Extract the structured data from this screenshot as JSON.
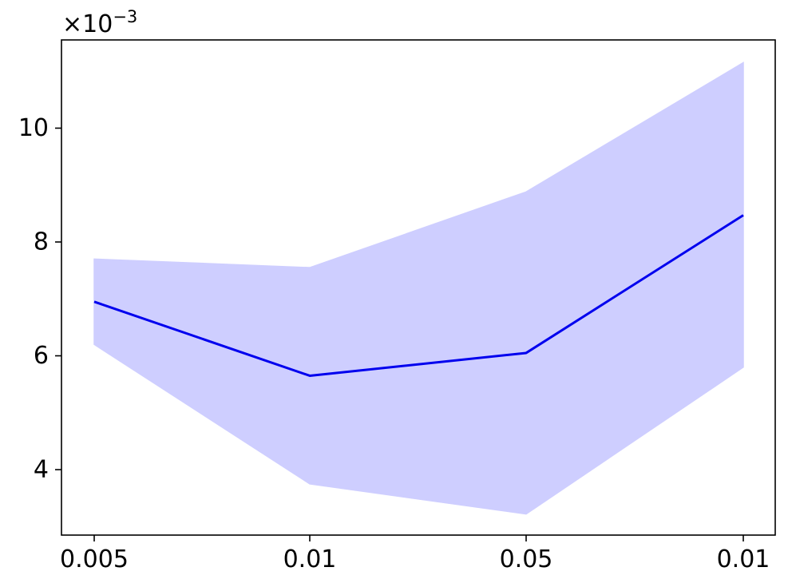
{
  "chart_data": {
    "type": "line",
    "title": "",
    "xlabel": "",
    "ylabel": "",
    "categories": [
      "0.005",
      "0.01",
      "0.05",
      "0.01"
    ],
    "y_scale_factor": "×10",
    "y_scale_exponent": "−3",
    "y_multiplier": 0.001,
    "yticks": [
      4,
      6,
      8,
      10
    ],
    "ylim": [
      2.85,
      11.55
    ],
    "series": [
      {
        "values": [
          6.95,
          5.65,
          6.05,
          8.47
        ],
        "lower": [
          6.2,
          3.75,
          3.22,
          5.8
        ],
        "upper": [
          7.7,
          7.55,
          8.88,
          11.15
        ],
        "line_color": "#0000ee",
        "band_color": "#ceceff"
      }
    ],
    "grid": false,
    "legend": "none"
  }
}
